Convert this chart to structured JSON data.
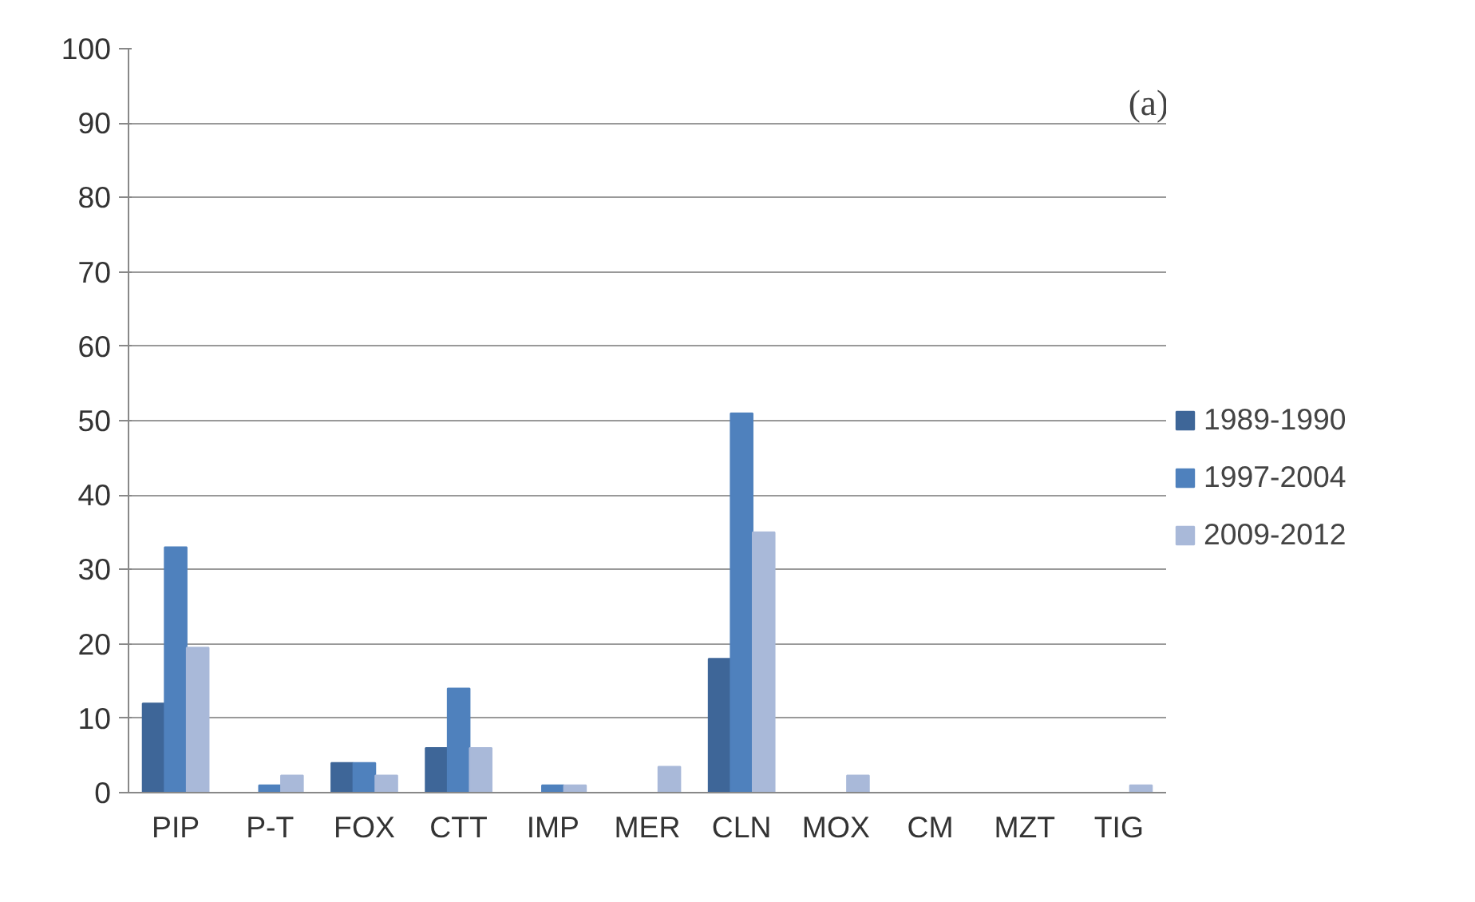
{
  "chart_data": {
    "type": "bar",
    "categories": [
      "PIP",
      "P-T",
      "FOX",
      "CTT",
      "IMP",
      "MER",
      "CLN",
      "MOX",
      "CM",
      "MZT",
      "TIG"
    ],
    "series": [
      {
        "name": "1989-1990",
        "color": "#3e6698",
        "values": [
          12,
          0,
          4,
          6,
          0,
          0,
          18,
          0,
          0,
          0,
          0
        ]
      },
      {
        "name": "1997-2004",
        "color": "#4f81bd",
        "values": [
          33,
          1,
          4,
          14,
          1,
          0,
          51,
          0,
          0,
          0,
          0
        ]
      },
      {
        "name": "2009-2012",
        "color": "#a9b9d9",
        "values": [
          19.5,
          2.3,
          2.3,
          6,
          1,
          3.5,
          35,
          2.3,
          0,
          0,
          1
        ]
      }
    ],
    "ylim": [
      0,
      100
    ],
    "yticks": [
      0,
      10,
      20,
      30,
      40,
      50,
      60,
      70,
      80,
      90,
      100
    ],
    "grid": "y",
    "legend": "right",
    "annotations": [
      "(a)"
    ]
  }
}
